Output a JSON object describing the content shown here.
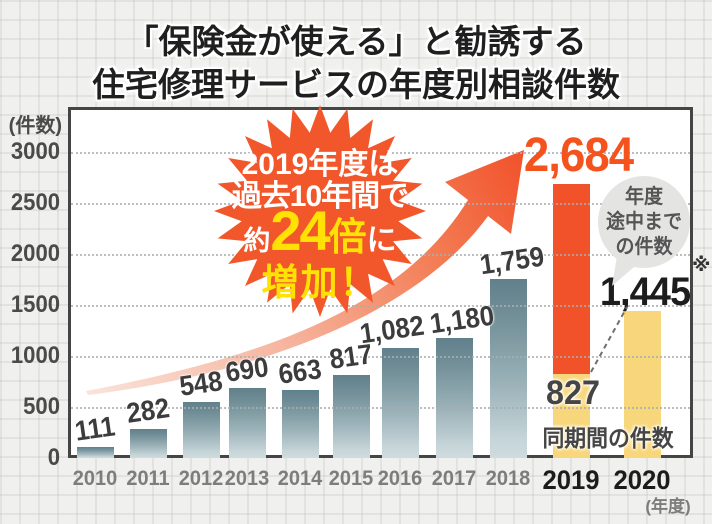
{
  "title": {
    "line1": "「保険金が使える」と勧誘する",
    "line2": "住宅修理サービスの年度別相談件数"
  },
  "y_axis": {
    "unit": "(件数)",
    "tick_values": [
      3000,
      2500,
      2000,
      1500,
      1000,
      500,
      0
    ]
  },
  "x_axis": {
    "unit": "(年度)"
  },
  "chart_data": {
    "type": "bar",
    "title": "「保険金が使える」と勧誘する住宅修理サービスの年度別相談件数",
    "categories": [
      "2010",
      "2011",
      "2012",
      "2013",
      "2014",
      "2015",
      "2016",
      "2017",
      "2018",
      "2019",
      "2020"
    ],
    "values": [
      111,
      282,
      548,
      690,
      663,
      817,
      1082,
      1180,
      1759,
      2684,
      1445
    ],
    "value_labels": [
      "111",
      "282",
      "548",
      "690",
      "663",
      "817",
      "1,082",
      "1,180",
      "1,759",
      "2,684",
      "1,445"
    ],
    "ylabel": "件数",
    "xlabel": "年度",
    "ylim": [
      0,
      3000
    ],
    "grid": "horizontal dotted lines every 500",
    "legend": "none",
    "notes": {
      "y2019_same_period_value": 827,
      "y2019_same_period_label": "827",
      "y2020_partial_year_value": 1445
    }
  },
  "burst": {
    "line1": "2019年度は",
    "line2": "過去10年間で",
    "line3_pre": "約",
    "line3_num": "24",
    "line3_mid": "倍",
    "line3_post": "に",
    "line4": "増加！"
  },
  "bubble": {
    "line1": "年度",
    "line2": "途中まで",
    "line3": "の件数"
  },
  "annotations": {
    "asterisk": "※",
    "same_period_caption": "同期間の件数"
  },
  "colors": {
    "accent_orange": "#f2522a",
    "bar_yellow": "#f8d77c",
    "teal_top": "#60808b",
    "teal_bottom": "#cfdcdf",
    "burst_fill": "#f2572b",
    "burst_yellow_text": "#ffe104",
    "big_number_orange": "#f4531d"
  }
}
